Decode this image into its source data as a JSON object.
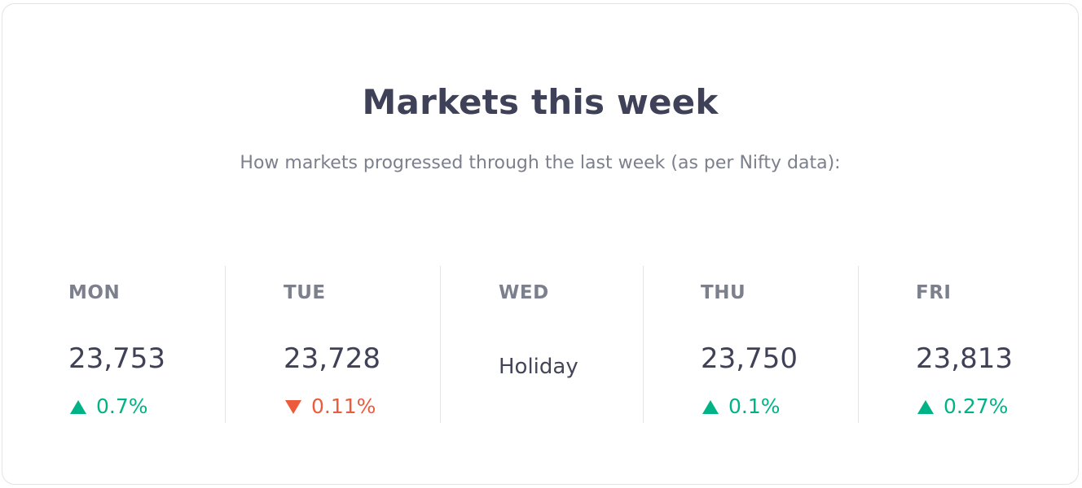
{
  "card": {
    "title": "Markets this week",
    "subtitle": "How markets progressed through the last week (as per Nifty data):"
  },
  "days": [
    {
      "day": "MON",
      "value": "23,753",
      "direction": "up",
      "change": "0.7%"
    },
    {
      "day": "TUE",
      "value": "23,728",
      "direction": "down",
      "change": "0.11%"
    },
    {
      "day": "WED",
      "note": "Holiday"
    },
    {
      "day": "THU",
      "value": "23,750",
      "direction": "up",
      "change": "0.1%"
    },
    {
      "day": "FRI",
      "value": "23,813",
      "direction": "up",
      "change": "0.27%"
    }
  ],
  "colors": {
    "up": "#00b386",
    "down": "#eb5b3c",
    "text_primary": "#3e4157",
    "text_secondary": "#7c7f8c"
  },
  "icons": {
    "up": "triangle-up-icon",
    "down": "triangle-down-icon"
  }
}
